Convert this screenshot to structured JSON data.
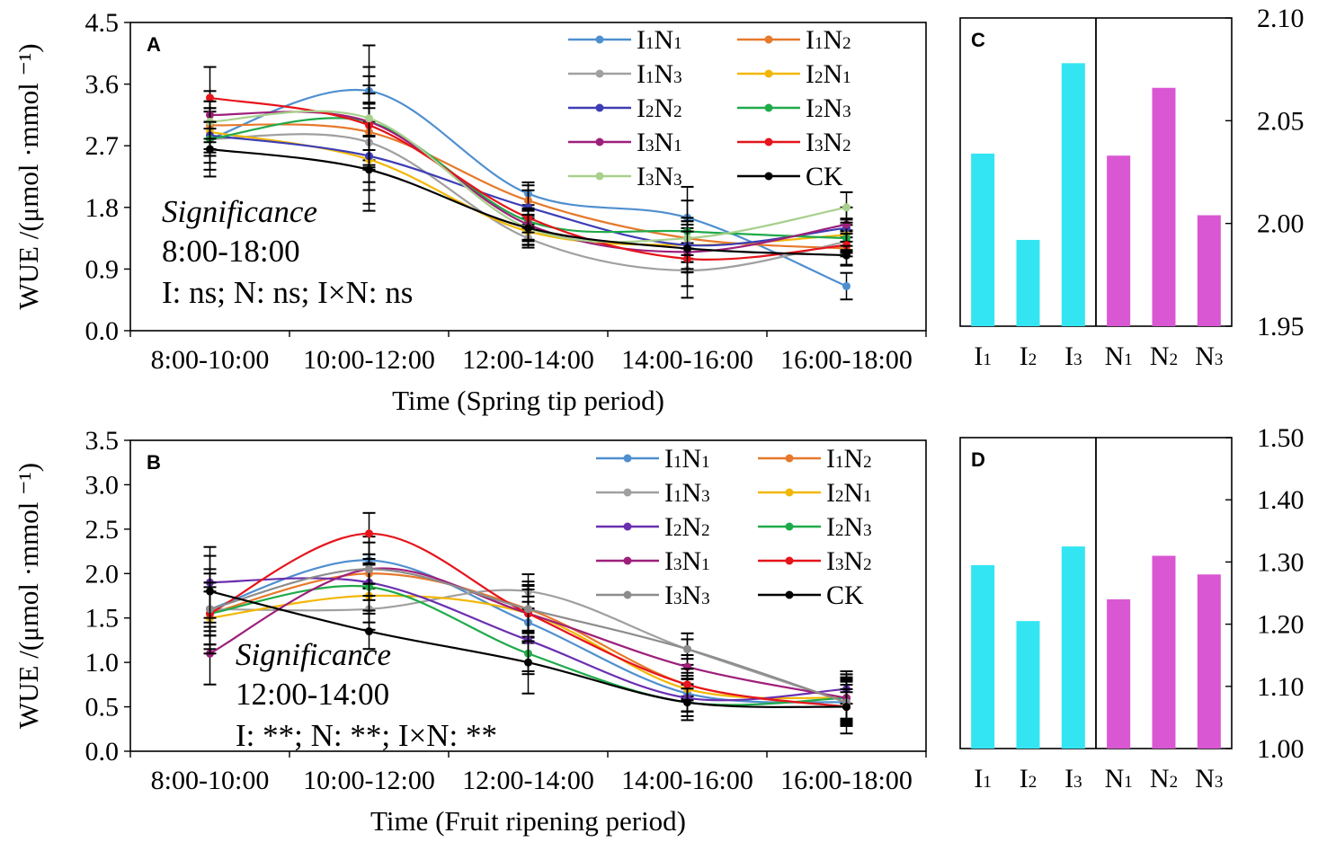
{
  "chart_data": [
    {
      "panel": "A",
      "type": "line",
      "xlabel": "Time (Spring tip period)",
      "ylabel": "WUE /(μmol ·mmol ⁻¹)",
      "ylim": [
        0,
        4.5
      ],
      "yticks": [
        "0.0",
        "0.9",
        "1.8",
        "2.7",
        "3.6",
        "4.5"
      ],
      "categories": [
        "8:00-10:00",
        "10:00-12:00",
        "12:00-14:00",
        "14:00-16:00",
        "16:00-18:00"
      ],
      "significance": {
        "title": "Significance",
        "window": "8:00-18:00",
        "result": "I: ns; N: ns; I×N: ns"
      },
      "series": [
        {
          "name": "I1N1",
          "base": "I",
          "s1": "1",
          "mid": "N",
          "s2": "1",
          "color": "#4f8fcf",
          "values": [
            2.8,
            3.5,
            2.0,
            1.65,
            0.65
          ]
        },
        {
          "name": "I1N2",
          "base": "I",
          "s1": "1",
          "mid": "N",
          "s2": "2",
          "color": "#e6792b",
          "values": [
            3.0,
            2.9,
            1.9,
            1.35,
            1.2
          ]
        },
        {
          "name": "I1N3",
          "base": "I",
          "s1": "1",
          "mid": "N",
          "s2": "3",
          "color": "#a0a0a0",
          "values": [
            2.8,
            2.75,
            1.35,
            0.88,
            1.3
          ]
        },
        {
          "name": "I2N1",
          "base": "I",
          "s1": "2",
          "mid": "N",
          "s2": "1",
          "color": "#f2b705",
          "values": [
            2.9,
            2.5,
            1.45,
            1.25,
            1.4
          ]
        },
        {
          "name": "I2N2",
          "base": "I",
          "s1": "2",
          "mid": "N",
          "s2": "2",
          "color": "#3d3db5",
          "values": [
            2.85,
            2.55,
            1.8,
            1.25,
            1.5
          ]
        },
        {
          "name": "I2N3",
          "base": "I",
          "s1": "2",
          "mid": "N",
          "s2": "3",
          "color": "#1faa4a",
          "values": [
            2.8,
            3.05,
            1.6,
            1.45,
            1.35
          ]
        },
        {
          "name": "I3N1",
          "base": "I",
          "s1": "3",
          "mid": "N",
          "s2": "1",
          "color": "#9e1f7a",
          "values": [
            3.15,
            3.05,
            1.55,
            1.15,
            1.55
          ]
        },
        {
          "name": "I3N2",
          "base": "I",
          "s1": "3",
          "mid": "N",
          "s2": "2",
          "color": "#e6141b",
          "values": [
            3.4,
            3.0,
            1.65,
            1.05,
            1.25
          ]
        },
        {
          "name": "I3N3",
          "base": "I",
          "s1": "3",
          "mid": "N",
          "s2": "3",
          "color": "#a8d08d",
          "values": [
            3.05,
            3.1,
            1.5,
            1.35,
            1.8
          ]
        },
        {
          "name": "CK",
          "base": "CK",
          "s1": "",
          "mid": "",
          "s2": "",
          "color": "#000000",
          "values": [
            2.65,
            2.35,
            1.5,
            1.2,
            1.1
          ]
        }
      ]
    },
    {
      "panel": "B",
      "type": "line",
      "xlabel": "Time (Fruit ripening period)",
      "ylabel": "WUE /(μmol ·mmol ⁻¹)",
      "ylim": [
        0,
        3.5
      ],
      "yticks": [
        "0.0",
        "0.5",
        "1.0",
        "1.5",
        "2.0",
        "2.5",
        "3.0",
        "3.5"
      ],
      "categories": [
        "8:00-10:00",
        "10:00-12:00",
        "12:00-14:00",
        "14:00-16:00",
        "16:00-18:00"
      ],
      "significance": {
        "title": "Significance",
        "window": "12:00-14:00",
        "result": "I: **; N: **; I×N: **"
      },
      "series": [
        {
          "name": "I1N1",
          "base": "I",
          "s1": "1",
          "mid": "N",
          "s2": "1",
          "color": "#4f8fcf",
          "values": [
            1.6,
            2.15,
            1.45,
            0.65,
            0.55
          ]
        },
        {
          "name": "I1N2",
          "base": "I",
          "s1": "1",
          "mid": "N",
          "s2": "2",
          "color": "#e6792b",
          "values": [
            1.55,
            2.0,
            1.6,
            0.75,
            0.5
          ]
        },
        {
          "name": "I1N3",
          "base": "I",
          "s1": "1",
          "mid": "N",
          "s2": "3",
          "color": "#a0a0a0",
          "values": [
            1.6,
            1.6,
            1.8,
            1.15,
            0.55
          ]
        },
        {
          "name": "I2N1",
          "base": "I",
          "s1": "2",
          "mid": "N",
          "s2": "1",
          "color": "#f2b705",
          "values": [
            1.5,
            1.75,
            1.55,
            0.7,
            0.6
          ]
        },
        {
          "name": "I2N2",
          "base": "I",
          "s1": "2",
          "mid": "N",
          "s2": "2",
          "color": "#6a2fb0",
          "values": [
            1.9,
            1.9,
            1.25,
            0.6,
            0.7
          ]
        },
        {
          "name": "I2N3",
          "base": "I",
          "s1": "2",
          "mid": "N",
          "s2": "3",
          "color": "#1faa4a",
          "values": [
            1.55,
            1.85,
            1.1,
            0.55,
            0.6
          ]
        },
        {
          "name": "I3N1",
          "base": "I",
          "s1": "3",
          "mid": "N",
          "s2": "1",
          "color": "#9e1f7a",
          "values": [
            1.1,
            2.05,
            1.55,
            0.95,
            0.6
          ]
        },
        {
          "name": "I3N2",
          "base": "I",
          "s1": "3",
          "mid": "N",
          "s2": "2",
          "color": "#e6141b",
          "values": [
            1.55,
            2.45,
            1.55,
            0.75,
            0.5
          ]
        },
        {
          "name": "I3N3",
          "base": "I",
          "s1": "3",
          "mid": "N",
          "s2": "3",
          "color": "#8c8c8c",
          "values": [
            1.6,
            2.05,
            1.6,
            1.15,
            0.55
          ]
        },
        {
          "name": "CK",
          "base": "CK",
          "s1": "",
          "mid": "",
          "s2": "",
          "color": "#000000",
          "values": [
            1.8,
            1.35,
            1.0,
            0.55,
            0.5
          ]
        }
      ]
    },
    {
      "panel": "C",
      "type": "bar",
      "ylim": [
        1.95,
        2.1
      ],
      "yticks": [
        "1.95",
        "2.00",
        "2.05",
        "2.10"
      ],
      "categories": [
        "I1",
        "I2",
        "I3",
        "N1",
        "N2",
        "N3"
      ],
      "values": [
        2.034,
        1.992,
        2.078,
        2.033,
        2.066,
        2.004
      ],
      "colors": [
        "#33e5f2",
        "#33e5f2",
        "#33e5f2",
        "#d957d2",
        "#d957d2",
        "#d957d2"
      ]
    },
    {
      "panel": "D",
      "type": "bar",
      "ylim": [
        1.0,
        1.5
      ],
      "yticks": [
        "1.00",
        "1.10",
        "1.20",
        "1.30",
        "1.40",
        "1.50"
      ],
      "categories": [
        "I1",
        "I2",
        "I3",
        "N1",
        "N2",
        "N3"
      ],
      "values": [
        1.295,
        1.205,
        1.325,
        1.24,
        1.31,
        1.28
      ],
      "colors": [
        "#33e5f2",
        "#33e5f2",
        "#33e5f2",
        "#d957d2",
        "#d957d2",
        "#d957d2"
      ]
    }
  ]
}
